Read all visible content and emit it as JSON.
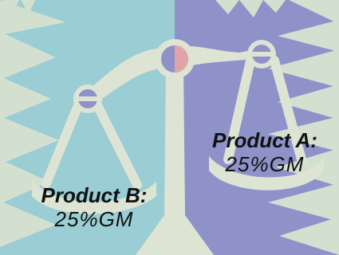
{
  "illustration": {
    "subject": "balance-scale",
    "colors": {
      "left_background": "#9acdd4",
      "right_background": "#8f92c9",
      "spikes": "#d3e0d0",
      "scale_body": "#dde4d4",
      "pivot_highlight": "#e2a3a8",
      "outline": "#8c90c9"
    }
  },
  "labels": {
    "product_a": {
      "name": "Product A:",
      "value": "25%GM"
    },
    "product_b": {
      "name": "Product B:",
      "value": "25%GM"
    }
  }
}
